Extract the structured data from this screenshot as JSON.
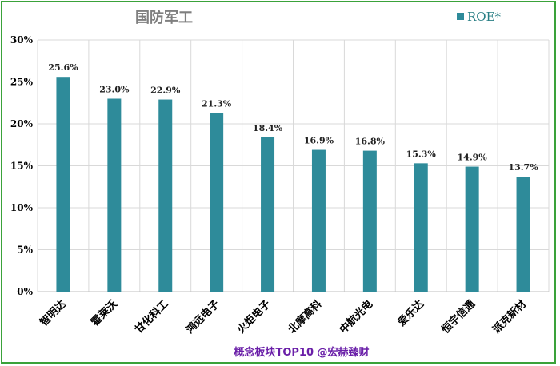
{
  "chart_data": {
    "type": "bar",
    "title": "国防军工",
    "categories": [
      "智明达",
      "霍莱沃",
      "甘化科工",
      "鸿远电子",
      "火炬电子",
      "北摩高科",
      "中航光电",
      "爱乐达",
      "恒宇信通",
      "派克新材"
    ],
    "series": [
      {
        "name": "ROE*",
        "values": [
          25.6,
          23.0,
          22.9,
          21.3,
          18.4,
          16.9,
          16.8,
          15.3,
          14.9,
          13.7
        ],
        "labels": [
          "25.6%",
          "23.0%",
          "22.9%",
          "21.3%",
          "18.4%",
          "16.9%",
          "16.8%",
          "15.3%",
          "14.9%",
          "13.7%"
        ]
      }
    ],
    "ylim": [
      0,
      30
    ],
    "yticks": [
      "0%",
      "5%",
      "10%",
      "15%",
      "20%",
      "25%",
      "30%"
    ],
    "ytick_values": [
      0,
      5,
      10,
      15,
      20,
      25,
      30
    ],
    "grid": true,
    "legend": "top-right",
    "xlabel": "",
    "ylabel": ""
  },
  "colors": {
    "bar": "#2e8b9a",
    "grid": "#d9d9d9",
    "frame": "#3aa23a",
    "title": "#7f7f7f",
    "footer": "#6a1fa8"
  },
  "footer": "概念板块TOP10 @宏赫臻财"
}
